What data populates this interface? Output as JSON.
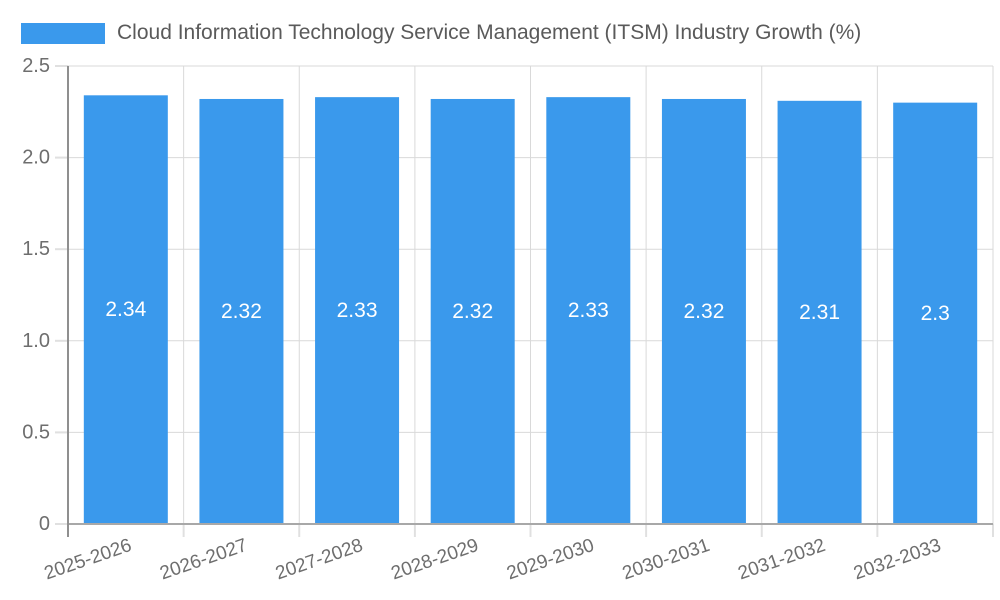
{
  "legend": {
    "label": "Cloud Information Technology Service Management (ITSM) Industry Growth (%)"
  },
  "chart_data": {
    "type": "bar",
    "title": "Cloud Information Technology Service Management (ITSM) Industry Growth (%)",
    "categories": [
      "2025-2026",
      "2026-2027",
      "2027-2028",
      "2028-2029",
      "2029-2030",
      "2030-2031",
      "2031-2032",
      "2032-2033"
    ],
    "values": [
      2.34,
      2.32,
      2.33,
      2.32,
      2.33,
      2.32,
      2.31,
      2.3
    ],
    "bar_labels": [
      "2.34",
      "2.32",
      "2.33",
      "2.32",
      "2.33",
      "2.32",
      "2.31",
      "2.3"
    ],
    "xlabel": "",
    "ylabel": "",
    "ylim": [
      0,
      2.5
    ],
    "yticks": [
      0,
      0.5,
      1,
      1.5,
      2,
      2.5
    ],
    "ytick_labels": [
      "0",
      "0.5",
      "1.0",
      "1.5",
      "2.0",
      "2.5"
    ],
    "xtick_rotation_deg": -19,
    "grid": true,
    "legend_position": "top-left",
    "bar_label_position": "inside-middle",
    "colors": {
      "bar": "#3a99ec",
      "bar_label": "#ffffff",
      "grid_line": "#d9d9d9",
      "tick_line": "#e0e0e0",
      "y_axis_line": "#8f8f8f",
      "x_axis_line": "#a8a8a8",
      "tick_text": "#6e6e6e",
      "legend_text": "#5a5a5a",
      "background": "#ffffff"
    }
  }
}
